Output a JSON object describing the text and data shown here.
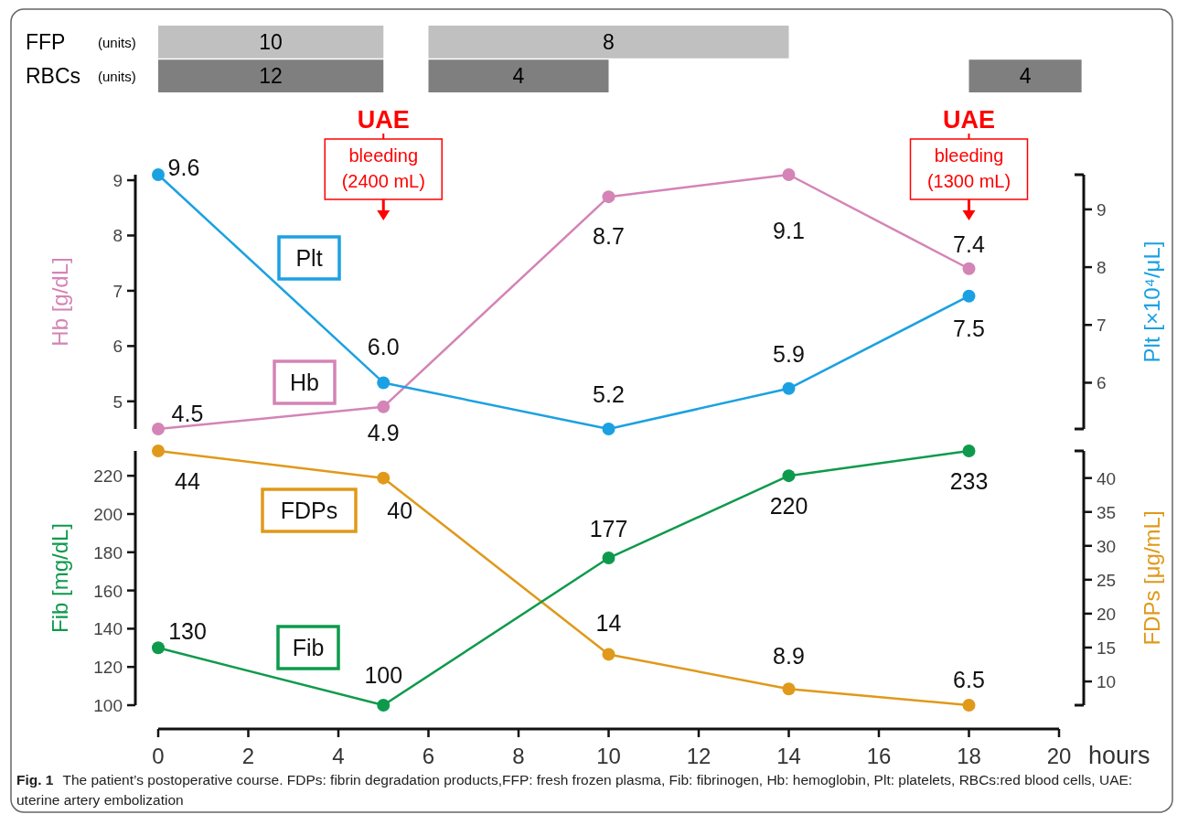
{
  "chart_data": [
    {
      "type": "bar",
      "orientation": "horizontal",
      "categories": [
        "FFP",
        "RBCs"
      ],
      "xlim": [
        0,
        20
      ],
      "annotations": [
        "(units)",
        "(units)",
        {
          "text": "10",
          "x": 2.5,
          "y": "FFP"
        },
        {
          "text": "12",
          "x": 2.5,
          "y": "RBCs"
        },
        {
          "text": "8",
          "x": 10,
          "y": "FFP"
        },
        {
          "text": "4",
          "x": 8,
          "y": "RBCs"
        },
        {
          "text": "4",
          "x": 19.25,
          "y": "RBCs"
        }
      ],
      "series": [
        {
          "colors": [
            "#c0c0c0",
            "#7f7f7f"
          ],
          "base": [
            0,
            0
          ],
          "values": [
            5,
            5
          ]
        },
        {
          "colors": [
            "#c0c0c0",
            "#7f7f7f"
          ],
          "base": [
            6,
            6
          ],
          "values": [
            8,
            4
          ]
        },
        {
          "color": "#7f7f7f",
          "base": [
            null,
            18
          ],
          "values": [
            null,
            2.5
          ]
        }
      ]
    },
    {
      "type": "line",
      "x": [
        0,
        5,
        10,
        14,
        18
      ],
      "xlim": [
        0,
        20
      ],
      "ylim": [
        4.5,
        9.1
      ],
      "yticks": [
        5,
        6,
        7,
        8,
        9
      ],
      "y2lim": [
        5.2,
        9.6
      ],
      "y2ticks": [
        6,
        7,
        8,
        9
      ],
      "ylabel": "Hb [g/dL]",
      "y2label": "Plt [×10⁴/μL]",
      "marker": "circle",
      "tick_labels": "y",
      "annotations": [
        {
          "text": "UAE\nbleeding\n(2400 mL)",
          "x": 5
        },
        {
          "text": "UAE\nbleeding\n(1300 mL)",
          "x": 18
        }
      ],
      "series": [
        {
          "name": "Hb",
          "color": "#d484b6",
          "values": [
            4.5,
            4.9,
            8.7,
            9.1,
            7.4
          ],
          "value_labels": [
            "4.5",
            "4.9",
            "8.7",
            "9.1",
            "7.4"
          ]
        },
        {
          "name": "Plt",
          "color": "#1ba1e2",
          "axis": "y2",
          "values": [
            9.6,
            6.0,
            5.2,
            5.9,
            7.5
          ],
          "value_labels": [
            "9.6",
            "6.0",
            "5.2",
            "5.9",
            "7.5"
          ]
        }
      ]
    },
    {
      "type": "line",
      "x": [
        0,
        5,
        10,
        14,
        18
      ],
      "xlim": [
        0,
        20
      ],
      "xticks": [
        0,
        2,
        4,
        6,
        8,
        10,
        12,
        14,
        16,
        18,
        20
      ],
      "xlabel": "hours",
      "ylim": [
        100,
        233
      ],
      "yticks": [
        100,
        120,
        140,
        160,
        180,
        200,
        220
      ],
      "y2lim": [
        6.5,
        44
      ],
      "y2ticks": [
        10,
        15,
        20,
        25,
        30,
        35,
        40
      ],
      "ylabel": "Fib [mg/dL]",
      "y2label": "FDPs [μg/mL]",
      "marker": "circle",
      "annotations": [
        "Fig. 1",
        "The patient’s postoperative course. FDPs: fibrin degradation products,FFP: fresh frozen plasma, Fib: fibrinogen, Hb: hemoglobin, Plt: platelets, RBCs:red blood cells, UAE: uterine artery embolization"
      ],
      "series": [
        {
          "name": "FDPs",
          "color": "#e0991a",
          "axis": "y2",
          "values": [
            44,
            40,
            14,
            8.9,
            6.5
          ],
          "value_labels": [
            "44",
            "40",
            "14",
            "8.9",
            "6.5"
          ]
        },
        {
          "name": "Fib",
          "color": "#0e9a4c",
          "values": [
            130,
            100,
            177,
            220,
            233
          ],
          "value_labels": [
            "130",
            "100",
            "177",
            "220",
            "233"
          ]
        }
      ]
    }
  ]
}
